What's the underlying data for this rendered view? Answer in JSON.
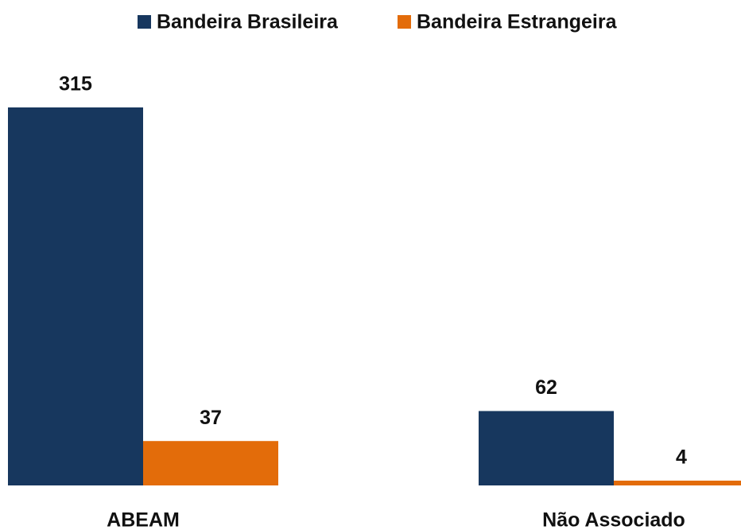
{
  "chart_data": {
    "type": "bar",
    "categories": [
      "ABEAM",
      "Não Associado"
    ],
    "series": [
      {
        "name": "Bandeira Brasileira",
        "color": "#17375e",
        "values": [
          315,
          62
        ]
      },
      {
        "name": "Bandeira Estrangeira",
        "color": "#e36c0a",
        "values": [
          37,
          4
        ]
      }
    ],
    "legend": "top"
  }
}
